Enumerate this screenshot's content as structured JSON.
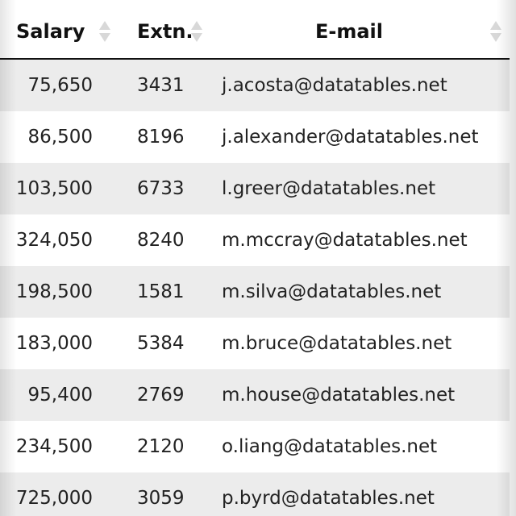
{
  "table": {
    "headers": {
      "salary": "Salary",
      "extn": "Extn.",
      "email": "E-mail"
    },
    "rows": [
      {
        "salary": "75,650",
        "extn": "3431",
        "email": "j.acosta@datatables.net"
      },
      {
        "salary": "86,500",
        "extn": "8196",
        "email": "j.alexander@datatables.net"
      },
      {
        "salary": "103,500",
        "extn": "6733",
        "email": "l.greer@datatables.net"
      },
      {
        "salary": "324,050",
        "extn": "8240",
        "email": "m.mccray@datatables.net"
      },
      {
        "salary": "198,500",
        "extn": "1581",
        "email": "m.silva@datatables.net"
      },
      {
        "salary": "183,000",
        "extn": "5384",
        "email": "m.bruce@datatables.net"
      },
      {
        "salary": "95,400",
        "extn": "2769",
        "email": "m.house@datatables.net"
      },
      {
        "salary": "234,500",
        "extn": "2120",
        "email": "o.liang@datatables.net"
      },
      {
        "salary": "725,000",
        "extn": "3059",
        "email": "p.byrd@datatables.net"
      }
    ]
  },
  "icons": {
    "sort": "sort-both-icon"
  },
  "colors": {
    "stripe": "#ececec",
    "header_border": "#111111",
    "sort_icon": "#d8d8d8"
  }
}
